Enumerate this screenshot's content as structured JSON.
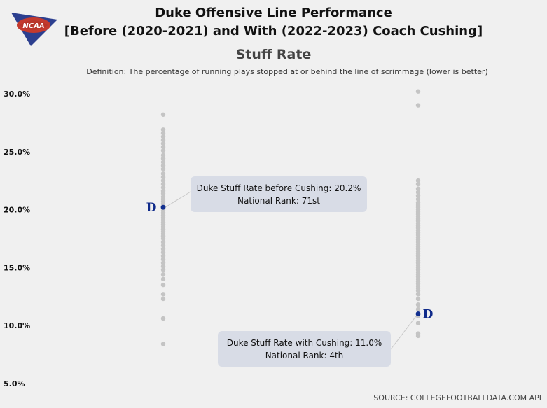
{
  "header": {
    "title_line1": "Duke Offensive Line Performance",
    "title_line2": "[Before (2020-2021) and With (2022-2023) Coach Cushing]",
    "subtitle": "Stuff Rate",
    "definition": "Definition: The percentage of running plays stopped at or behind the line of scrimmage (lower is better)",
    "logo_text": "NCAA"
  },
  "footer": {
    "source": "SOURCE: COLLEGEFOOTBALLDATA.COM API"
  },
  "colors": {
    "dots": "#c4c4c4",
    "highlight": "#13308f",
    "annotation_bg": "#d8dce6",
    "background": "#f0f0f0"
  },
  "chart_data": {
    "type": "scatter",
    "title": "Stuff Rate",
    "xlabel": "",
    "ylabel": "",
    "ylim": [
      5.0,
      30.5
    ],
    "yticks": [
      5.0,
      10.0,
      15.0,
      20.0,
      25.0,
      30.0
    ],
    "ytick_labels": [
      "5.0%",
      "10.0%",
      "15.0%",
      "20.0%",
      "25.0%",
      "30.0%"
    ],
    "grid": false,
    "groups": [
      {
        "key": "before",
        "period": "2020-2021",
        "values": [
          28.2,
          26.9,
          26.6,
          26.3,
          26.0,
          25.7,
          25.4,
          25.1,
          24.7,
          24.4,
          24.1,
          23.8,
          23.5,
          23.1,
          22.8,
          22.5,
          22.2,
          21.9,
          21.6,
          21.4,
          21.1,
          20.9,
          20.7,
          20.5,
          20.3,
          20.1,
          19.9,
          19.7,
          19.5,
          19.3,
          19.1,
          18.9,
          18.7,
          18.5,
          18.3,
          18.1,
          17.9,
          17.7,
          17.5,
          17.2,
          16.9,
          16.6,
          16.3,
          16.0,
          15.7,
          15.4,
          15.1,
          14.8,
          14.4,
          14.0,
          13.5,
          12.7,
          12.3,
          10.6,
          8.4
        ],
        "highlight": {
          "value": 20.2,
          "annotation": "Duke Stuff Rate before Cushing: 20.2%",
          "rank_label": "National Rank: 71st"
        }
      },
      {
        "key": "with",
        "period": "2022-2023",
        "values": [
          30.2,
          29.0,
          22.5,
          22.2,
          21.8,
          21.5,
          21.2,
          20.9,
          20.6,
          20.4,
          20.2,
          20.0,
          19.8,
          19.6,
          19.4,
          19.2,
          19.0,
          18.8,
          18.6,
          18.4,
          18.2,
          18.0,
          17.8,
          17.6,
          17.4,
          17.2,
          17.0,
          16.8,
          16.6,
          16.4,
          16.2,
          16.0,
          15.8,
          15.6,
          15.4,
          15.2,
          15.0,
          14.8,
          14.6,
          14.4,
          14.2,
          14.0,
          13.8,
          13.6,
          13.4,
          13.2,
          13.0,
          12.7,
          12.3,
          11.8,
          11.4,
          10.8,
          10.2,
          9.3,
          9.1
        ],
        "highlight": {
          "value": 11.0,
          "annotation": "Duke Stuff Rate with Cushing: 11.0%",
          "rank_label": "National Rank: 4th"
        }
      }
    ]
  }
}
